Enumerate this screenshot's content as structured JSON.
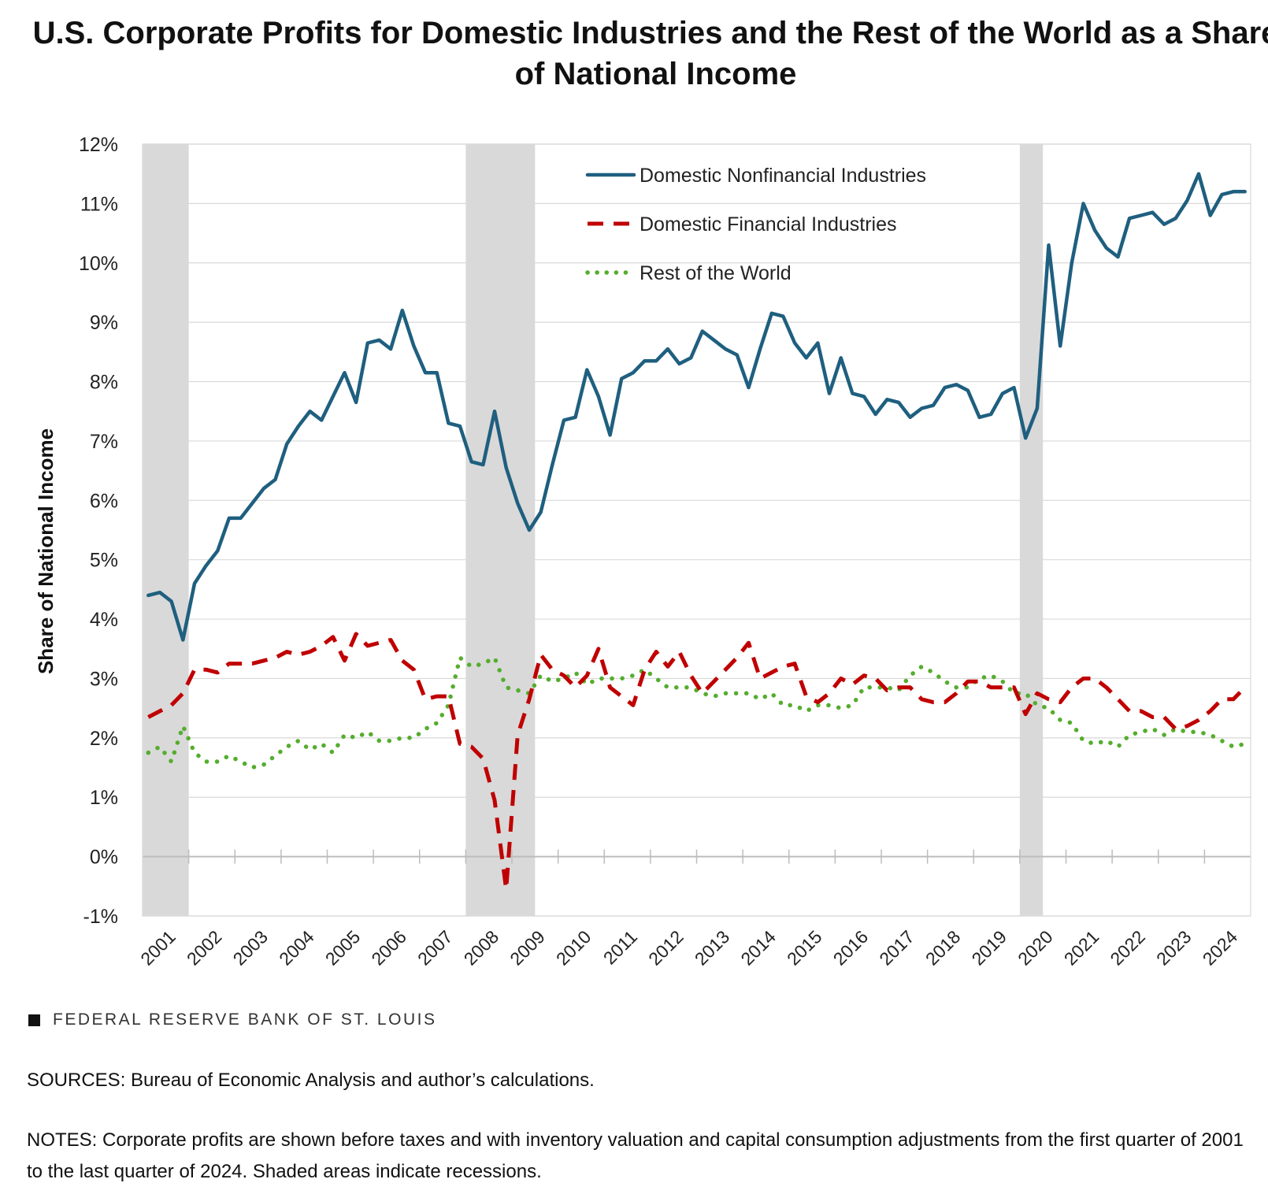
{
  "title": "U.S. Corporate Profits for Domestic Industries and the Rest of the World as a Share of National Income",
  "footer": {
    "brand": "FEDERAL RESERVE BANK OF ST. LOUIS",
    "sources": "SOURCES: Bureau of Economic Analysis and author’s calculations.",
    "notes": "NOTES: Corporate profits are shown before taxes and with inventory valuation and capital consumption adjustments from the first quarter of 2001 to the last quarter of 2024. Shaded areas indicate recessions."
  },
  "chart_data": {
    "type": "line",
    "title": "U.S. Corporate Profits for Domestic Industries and the Rest of the World as a Share of National Income",
    "xlabel": "",
    "ylabel": "Share of National Income",
    "ylim": [
      -1,
      12
    ],
    "yticks": [
      -1,
      0,
      1,
      2,
      3,
      4,
      5,
      6,
      7,
      8,
      9,
      10,
      11,
      12
    ],
    "ytick_labels": [
      "-1%",
      "0%",
      "1%",
      "2%",
      "3%",
      "4%",
      "5%",
      "6%",
      "7%",
      "8%",
      "9%",
      "10%",
      "11%",
      "12%"
    ],
    "x_tick_labels": [
      "2001",
      "2002",
      "2003",
      "2004",
      "2005",
      "2006",
      "2007",
      "2008",
      "2009",
      "2010",
      "2011",
      "2012",
      "2013",
      "2014",
      "2015",
      "2016",
      "2017",
      "2018",
      "2019",
      "2020",
      "2021",
      "2022",
      "2023",
      "2024"
    ],
    "x_frequency": "quarterly, 2001 Q1 to 2024 Q4",
    "grid": "horizontal",
    "legend_position": "top-center",
    "recessions": [
      {
        "start": "2001 Q1",
        "end": "2001 Q4"
      },
      {
        "start": "2008 Q1",
        "end": "2009 Q2"
      },
      {
        "start": "2020 Q1",
        "end": "2020 Q2"
      }
    ],
    "colors": {
      "nonfinancial": "#1f5f7f",
      "financial": "#c00000",
      "rest_of_world": "#55ad2e",
      "recession": "#d9d9d9",
      "grid": "#d9d9d9"
    },
    "series": [
      {
        "name": "Domestic Nonfinancial Industries",
        "style": "solid",
        "values": [
          4.4,
          4.45,
          4.3,
          3.65,
          4.6,
          4.9,
          5.15,
          5.7,
          5.7,
          5.95,
          6.2,
          6.35,
          6.95,
          7.25,
          7.5,
          7.35,
          7.75,
          8.15,
          7.65,
          8.65,
          8.7,
          8.55,
          9.2,
          8.6,
          8.15,
          8.15,
          7.3,
          7.25,
          6.65,
          6.6,
          7.5,
          6.55,
          5.95,
          5.5,
          5.8,
          6.6,
          7.35,
          7.4,
          8.2,
          7.75,
          7.1,
          8.05,
          8.15,
          8.35,
          8.35,
          8.55,
          8.3,
          8.4,
          8.85,
          8.7,
          8.55,
          8.45,
          7.9,
          8.55,
          9.15,
          9.1,
          8.65,
          8.4,
          8.65,
          7.8,
          8.4,
          7.8,
          7.75,
          7.45,
          7.7,
          7.65,
          7.4,
          7.55,
          7.6,
          7.9,
          7.95,
          7.85,
          7.4,
          7.45,
          7.8,
          7.9,
          7.05,
          7.55,
          10.3,
          8.6,
          10.0,
          11.0,
          10.55,
          10.25,
          10.1,
          10.75,
          10.8,
          10.85,
          10.65,
          10.75,
          11.05,
          11.5,
          10.8,
          11.15,
          11.2,
          11.2
        ]
      },
      {
        "name": "Domestic Financial Industries",
        "style": "dashed",
        "values": [
          2.35,
          2.45,
          2.55,
          2.75,
          3.15,
          3.15,
          3.1,
          3.25,
          3.25,
          3.25,
          3.3,
          3.35,
          3.45,
          3.4,
          3.45,
          3.55,
          3.7,
          3.3,
          3.75,
          3.55,
          3.6,
          3.65,
          3.3,
          3.15,
          2.65,
          2.7,
          2.7,
          1.9,
          1.85,
          1.65,
          0.95,
          -0.55,
          2.05,
          2.65,
          3.4,
          3.15,
          3.05,
          2.85,
          3.05,
          3.5,
          2.85,
          2.7,
          2.55,
          3.15,
          3.45,
          3.2,
          3.45,
          3.05,
          2.75,
          2.95,
          3.15,
          3.35,
          3.6,
          3.0,
          3.1,
          3.2,
          3.25,
          2.7,
          2.6,
          2.75,
          3.0,
          2.9,
          3.05,
          3.0,
          2.8,
          2.85,
          2.85,
          2.65,
          2.6,
          2.6,
          2.75,
          2.95,
          2.95,
          2.85,
          2.85,
          2.85,
          2.4,
          2.75,
          2.65,
          2.6,
          2.85,
          3.0,
          3.0,
          2.85,
          2.65,
          2.45,
          2.45,
          2.35,
          2.35,
          2.15,
          2.2,
          2.3,
          2.45,
          2.65,
          2.65,
          2.85
        ]
      },
      {
        "name": "Rest of the World",
        "style": "dotted",
        "values": [
          1.75,
          1.85,
          1.6,
          2.2,
          1.75,
          1.6,
          1.6,
          1.7,
          1.6,
          1.5,
          1.55,
          1.7,
          1.85,
          1.95,
          1.8,
          1.9,
          1.75,
          2.05,
          2.0,
          2.1,
          1.95,
          1.95,
          2.0,
          2.0,
          2.15,
          2.25,
          2.55,
          3.35,
          3.2,
          3.25,
          3.35,
          2.85,
          2.8,
          2.75,
          3.05,
          2.95,
          3.0,
          3.1,
          2.9,
          3.0,
          3.0,
          3.0,
          3.05,
          3.15,
          3.0,
          2.85,
          2.85,
          2.85,
          2.75,
          2.7,
          2.75,
          2.75,
          2.75,
          2.65,
          2.75,
          2.55,
          2.55,
          2.45,
          2.55,
          2.55,
          2.5,
          2.55,
          2.85,
          2.85,
          2.85,
          2.8,
          3.05,
          3.2,
          3.1,
          2.95,
          2.85,
          2.85,
          3.0,
          3.05,
          2.95,
          2.75,
          2.75,
          2.55,
          2.5,
          2.3,
          2.25,
          1.95,
          1.9,
          1.95,
          1.85,
          2.05,
          2.1,
          2.15,
          2.05,
          2.15,
          2.1,
          2.1,
          2.05,
          1.95,
          1.85,
          1.9
        ]
      }
    ]
  }
}
